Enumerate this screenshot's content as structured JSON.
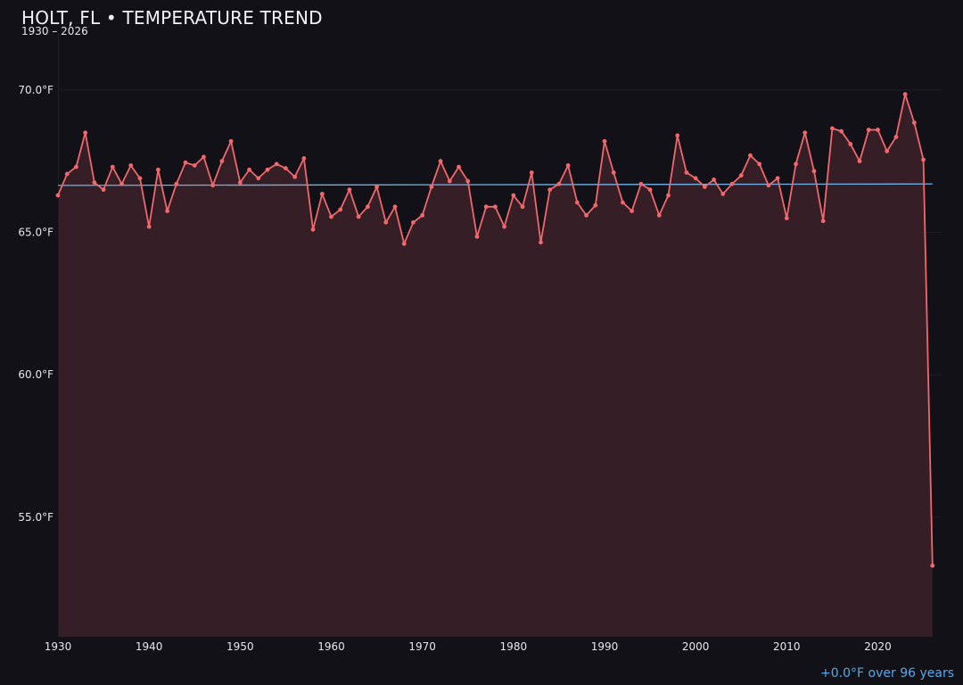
{
  "header": {
    "title": "HOLT, FL • TEMPERATURE TREND",
    "subtitle": "1930 – 2026"
  },
  "footer": {
    "trend_text": "+0.0°F over 96 years"
  },
  "colors": {
    "background": "#121117",
    "series_line": "#f0686c",
    "area_fill": "#351e25",
    "trend_line": "#6fb3e8",
    "grid": "#1f1d24",
    "axis_text": "#e6e6ea",
    "footer_text": "#55a9e6"
  },
  "chart_data": {
    "type": "line",
    "title": "HOLT, FL • TEMPERATURE TREND",
    "subtitle": "1930 – 2026",
    "xlabel": "",
    "ylabel": "",
    "xlim": [
      1930,
      2027
    ],
    "ylim": [
      50.8,
      72.0
    ],
    "x_ticks": [
      1930,
      1940,
      1950,
      1960,
      1970,
      1980,
      1990,
      2000,
      2010,
      2020
    ],
    "x_tick_labels": [
      "1930",
      "1940",
      "1950",
      "1960",
      "1970",
      "1980",
      "1990",
      "2000",
      "2010",
      "2020"
    ],
    "y_ticks": [
      55,
      60,
      65,
      70
    ],
    "y_tick_labels": [
      "55.0°F",
      "60.0°F",
      "65.0°F",
      "70.0°F"
    ],
    "grid": true,
    "area_fill": true,
    "trend": {
      "x": [
        1930,
        2026
      ],
      "y": [
        66.65,
        66.7
      ]
    },
    "series": [
      {
        "x": [
          1930,
          1931,
          1932,
          1933,
          1934,
          1935,
          1936,
          1937,
          1938,
          1939,
          1940,
          1941,
          1942,
          1943,
          1944,
          1945,
          1946,
          1947,
          1948,
          1949,
          1950,
          1951,
          1952,
          1953,
          1954,
          1955,
          1956,
          1957,
          1958,
          1959,
          1960,
          1961,
          1962,
          1963,
          1964,
          1965,
          1966,
          1967,
          1968,
          1969,
          1970,
          1971,
          1972,
          1973,
          1974,
          1975,
          1976,
          1977,
          1978,
          1979,
          1980,
          1981,
          1982,
          1983,
          1984,
          1985,
          1986,
          1987,
          1988,
          1989,
          1990,
          1991,
          1992,
          1993,
          1994,
          1995,
          1996,
          1997,
          1998,
          1999,
          2000,
          2001,
          2002,
          2003,
          2004,
          2005,
          2006,
          2007,
          2008,
          2009,
          2010,
          2011,
          2012,
          2013,
          2014,
          2015,
          2016,
          2017,
          2018,
          2019,
          2020,
          2021,
          2022,
          2023,
          2024,
          2025,
          2026
        ],
        "values": [
          66.3,
          67.05,
          67.3,
          68.5,
          66.75,
          66.5,
          67.3,
          66.7,
          67.35,
          66.9,
          65.2,
          67.2,
          65.75,
          66.7,
          67.45,
          67.35,
          67.65,
          66.65,
          67.5,
          68.2,
          66.75,
          67.2,
          66.9,
          67.2,
          67.4,
          67.25,
          66.95,
          67.6,
          65.1,
          66.35,
          65.55,
          65.8,
          66.5,
          65.55,
          65.9,
          66.6,
          65.35,
          65.9,
          64.6,
          65.35,
          65.6,
          66.6,
          67.5,
          66.8,
          67.3,
          66.8,
          64.85,
          65.9,
          65.9,
          65.2,
          66.3,
          65.9,
          67.1,
          64.65,
          66.5,
          66.7,
          67.35,
          66.05,
          65.6,
          65.95,
          68.2,
          67.1,
          66.05,
          65.75,
          66.7,
          66.5,
          65.6,
          66.3,
          68.4,
          67.1,
          66.9,
          66.6,
          66.85,
          66.35,
          66.7,
          67.0,
          67.7,
          67.4,
          66.65,
          66.9,
          65.5,
          67.4,
          68.5,
          67.15,
          65.4,
          68.65,
          68.55,
          68.1,
          67.5,
          68.6,
          68.6,
          67.85,
          68.35,
          69.85,
          68.85,
          67.55,
          53.3
        ]
      }
    ]
  }
}
